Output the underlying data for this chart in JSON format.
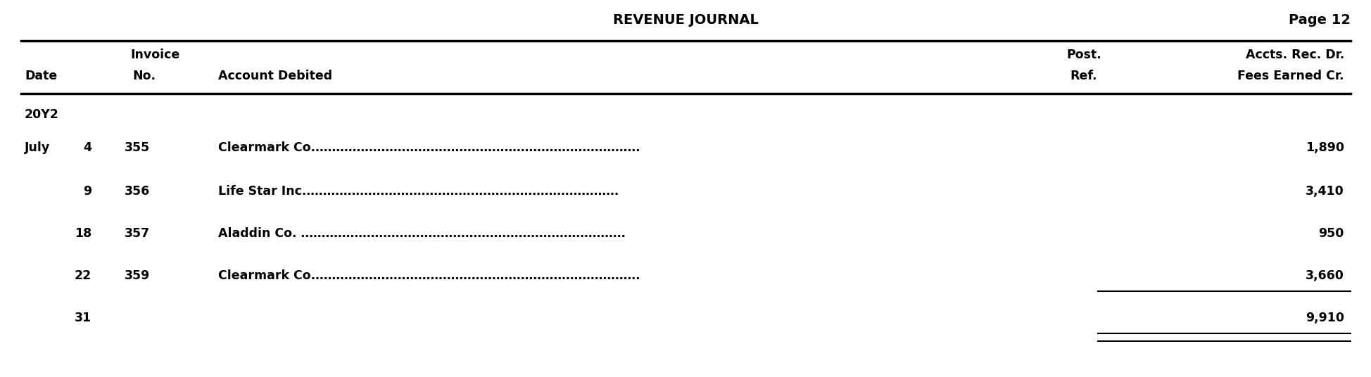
{
  "title": "REVENUE JOURNAL",
  "page": "Page 12",
  "col_headers": [
    [
      "",
      "Invoice",
      ""
    ],
    [
      "Date",
      "No.",
      "Account Debited"
    ],
    [
      "",
      "Post.\nRef.",
      "Accts. Rec. Dr.\nFees Earned Cr."
    ]
  ],
  "year_row": "20Y2",
  "rows": [
    {
      "month": "July",
      "day": "4",
      "invoice": "355",
      "account": "Clearmark Co.…………………………………………………………………….",
      "post_ref": "",
      "amount": "1,890"
    },
    {
      "month": "",
      "day": "9",
      "invoice": "356",
      "account": "Life Star Inc.………………………………………………………………….",
      "post_ref": "",
      "amount": "3,410"
    },
    {
      "month": "",
      "day": "18",
      "invoice": "357",
      "account": "Aladdin Co. …………………………………………………………………….",
      "post_ref": "",
      "amount": "950"
    },
    {
      "month": "",
      "day": "22",
      "invoice": "359",
      "account": "Clearmark Co.…………………………………………………………………….",
      "post_ref": "",
      "amount": "3,660"
    },
    {
      "month": "",
      "day": "31",
      "invoice": "",
      "account": "",
      "post_ref": "",
      "amount": "9,910"
    }
  ],
  "bg_color": "#ffffff",
  "text_color": "#000000",
  "figsize": [
    19.49,
    5.36
  ],
  "dpi": 100
}
